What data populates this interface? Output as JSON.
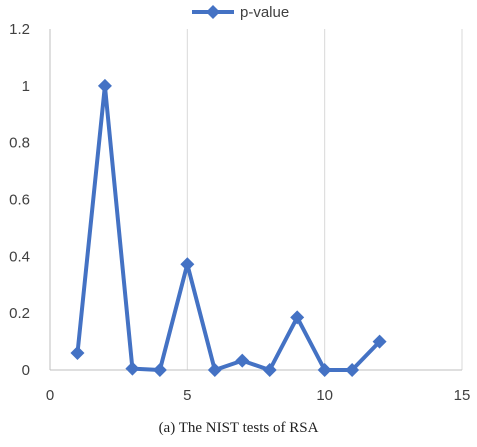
{
  "chart_data": {
    "type": "line",
    "legend": {
      "position": "top",
      "label": "p-value"
    },
    "series": [
      {
        "name": "p-value",
        "color": "#4472C4",
        "marker": "diamond",
        "x": [
          1,
          2,
          3,
          4,
          5,
          6,
          7,
          8,
          9,
          10,
          11,
          12
        ],
        "values": [
          0.06,
          1.0,
          0.005,
          0.0,
          0.372,
          0.0,
          0.033,
          0.0,
          0.185,
          0.0,
          0.0,
          0.1
        ]
      }
    ],
    "xlim": [
      0,
      15
    ],
    "ylim": [
      0,
      1.2
    ],
    "xticks": [
      0,
      5,
      10,
      15
    ],
    "yticks": [
      0,
      0.2,
      0.4,
      0.6,
      0.8,
      1,
      1.2
    ],
    "xtick_labels": [
      "0",
      "5",
      "10",
      "15"
    ],
    "ytick_labels": [
      "0",
      "0.2",
      "0.4",
      "0.6",
      "0.8",
      "1",
      "1.2"
    ],
    "grid": "vertical",
    "caption": "(a) The NIST tests of RSA"
  }
}
